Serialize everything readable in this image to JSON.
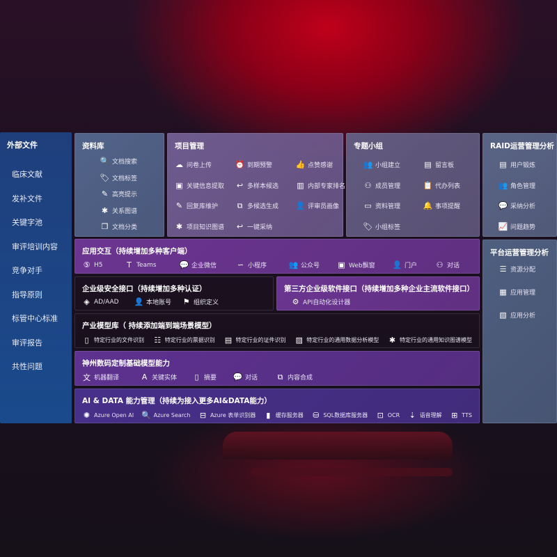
{
  "sidebar": {
    "title": "外部文件",
    "items": [
      "临床文献",
      "发补文件",
      "关键字池",
      "审评培训内容",
      "竞争对手",
      "指导原则",
      "标管中心标准",
      "审评报告",
      "共性问题"
    ]
  },
  "colors": {
    "sidebar": "#1f3f7c",
    "library": "#52648a",
    "project": "#6f5b8e",
    "group": "#625b80",
    "raid": "#5a6586",
    "platform": "#4f5f80",
    "app": "#6b3591",
    "model": "#5e3290",
    "aidata": "#47308a"
  },
  "library": {
    "title": "资料库",
    "items": [
      {
        "icon": "doc-search",
        "label": "文档搜索"
      },
      {
        "icon": "tag",
        "label": "文档标签"
      },
      {
        "icon": "pen",
        "label": "高亮提示"
      },
      {
        "icon": "graph",
        "label": "关系图谱"
      },
      {
        "icon": "doc-copy",
        "label": "文档分类"
      }
    ]
  },
  "project": {
    "title": "项目管理",
    "items": [
      {
        "icon": "cloud-upload",
        "label": "问卷上传"
      },
      {
        "icon": "alarm",
        "label": "到期预警"
      },
      {
        "icon": "thumbs-up",
        "label": "点赞感谢"
      },
      {
        "icon": "window",
        "label": "关键信息提取"
      },
      {
        "icon": "reply",
        "label": "多样本候选"
      },
      {
        "icon": "ranking",
        "label": "内部专家排名"
      },
      {
        "icon": "pen",
        "label": "回复库维护"
      },
      {
        "icon": "puzzle",
        "label": "多候选生成"
      },
      {
        "icon": "user",
        "label": "评审员画像"
      },
      {
        "icon": "graph",
        "label": "项目知识图谱"
      },
      {
        "icon": "reply",
        "label": "一键采纳"
      }
    ]
  },
  "group": {
    "title": "专题小组",
    "items": [
      {
        "icon": "users",
        "label": "小组建立"
      },
      {
        "icon": "bbs",
        "label": "留言板"
      },
      {
        "icon": "user-add",
        "label": "成员管理"
      },
      {
        "icon": "clipboard",
        "label": "代办列表"
      },
      {
        "icon": "folder",
        "label": "资料管理"
      },
      {
        "icon": "bell",
        "label": "事项提醒"
      },
      {
        "icon": "tag",
        "label": "小组标签"
      }
    ]
  },
  "raid": {
    "title": "RAID运营管理分析",
    "items": [
      {
        "icon": "id-card",
        "label": "用户锻炼"
      },
      {
        "icon": "users",
        "label": "角色管理"
      },
      {
        "icon": "qa",
        "label": "采纳分析"
      },
      {
        "icon": "chart-trend",
        "label": "问题趋势"
      }
    ]
  },
  "platform": {
    "title": "平台运营管理分析",
    "items": [
      {
        "icon": "checklist",
        "label": "资源分配"
      },
      {
        "icon": "apps",
        "label": "应用管理"
      },
      {
        "icon": "analytics",
        "label": "应用分析"
      }
    ]
  },
  "app": {
    "title": "应用交互（持续增加多种客户端）",
    "items": [
      {
        "icon": "html5",
        "label": "H5"
      },
      {
        "icon": "teams",
        "label": "Teams"
      },
      {
        "icon": "wechat",
        "label": "企业微信"
      },
      {
        "icon": "mini-program",
        "label": "小程序"
      },
      {
        "icon": "users",
        "label": "公众号"
      },
      {
        "icon": "window",
        "label": "Web飘窗"
      },
      {
        "icon": "user",
        "label": "门户"
      },
      {
        "icon": "chat-users",
        "label": "对话"
      }
    ]
  },
  "security": {
    "title": "企业级安全接口（持续增加多种认证）",
    "items": [
      {
        "icon": "diamond",
        "label": "AD/AAD"
      },
      {
        "icon": "user",
        "label": "本地账号"
      },
      {
        "icon": "org",
        "label": "组织定义"
      }
    ]
  },
  "thirdparty": {
    "title": "第三方企业级软件接口（持续增加多种企业主流软件接口）",
    "items": [
      {
        "icon": "gear",
        "label": "API自动化设计器"
      }
    ]
  },
  "industry": {
    "title": "产业模型库（ 持续添加端到端场景模型）",
    "items": [
      {
        "icon": "doc",
        "label": "特定行业的文件识别"
      },
      {
        "icon": "receipt",
        "label": "特定行业的票据识别"
      },
      {
        "icon": "id-card",
        "label": "特定行业的证件识别"
      },
      {
        "icon": "image",
        "label": "特定行业的通用数据分析模型"
      },
      {
        "icon": "graph",
        "label": "特定行业的通用知识图谱模型"
      }
    ]
  },
  "foundation": {
    "title": "神州数码定制基础模型能力",
    "items": [
      {
        "icon": "translate",
        "label": "机器翻译"
      },
      {
        "icon": "entity",
        "label": "关键实体"
      },
      {
        "icon": "doc",
        "label": "摘要"
      },
      {
        "icon": "chat",
        "label": "对话"
      },
      {
        "icon": "puzzle",
        "label": "内容合成"
      }
    ]
  },
  "aidata": {
    "title": "AI & DATA 能力管理（持续为接入更多AI&DATA能力）",
    "items": [
      {
        "icon": "openai",
        "label": "Azure Open AI"
      },
      {
        "icon": "doc-search",
        "label": "Azure Search"
      },
      {
        "icon": "form",
        "label": "Azure 表单识别器"
      },
      {
        "icon": "storage",
        "label": "缓存服务器"
      },
      {
        "icon": "database",
        "label": "SQL数据库服务器"
      },
      {
        "icon": "ocr",
        "label": "OCR"
      },
      {
        "icon": "voice",
        "label": "语音理解"
      },
      {
        "icon": "tts",
        "label": "TTS"
      }
    ]
  }
}
